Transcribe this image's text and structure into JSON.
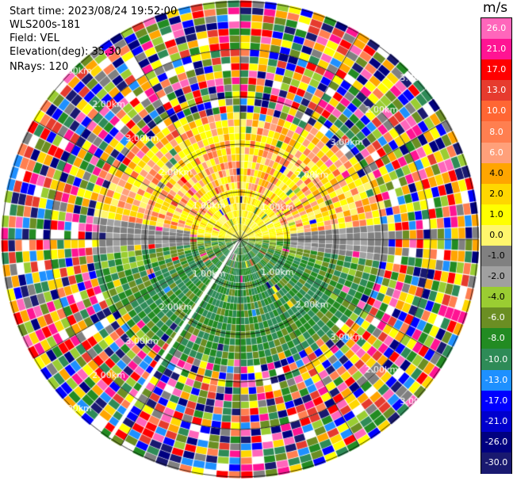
{
  "info": {
    "start_time": "Start time: 2023/08/24 19:52:00",
    "instrument": "WLS200s-181",
    "field": "Field: VEL",
    "elevation": "Elevation(deg): 35.30",
    "nrays": "NRays: 120"
  },
  "colorbar": {
    "unit": "m/s",
    "ticks": [
      "26.0",
      "21.0",
      "17.0",
      "13.0",
      "10.0",
      "8.0",
      "6.0",
      "4.0",
      "2.0",
      "1.0",
      "0.0",
      "-1.0",
      "-2.0",
      "-4.0",
      "-6.0",
      "-8.0",
      "-10.0",
      "-13.0",
      "-17.0",
      "-21.0",
      "-26.0",
      "-30.0"
    ],
    "colors": [
      "#ff66bb",
      "#ff1493",
      "#ff0000",
      "#e63b2e",
      "#ff6633",
      "#ff7f50",
      "#ffa07a",
      "#ffa500",
      "#ffd700",
      "#ffff00",
      "#fff66d",
      "#808080",
      "#a0a0a0",
      "#9acd32",
      "#6b8e23",
      "#228b22",
      "#2e8b57",
      "#1e90ff",
      "#0000ff",
      "#0000cd",
      "#000080",
      "#191970"
    ]
  },
  "range_labels": {
    "one_km": "1.00km",
    "two_km": "2.00km",
    "three_km": "3.00km"
  }
}
